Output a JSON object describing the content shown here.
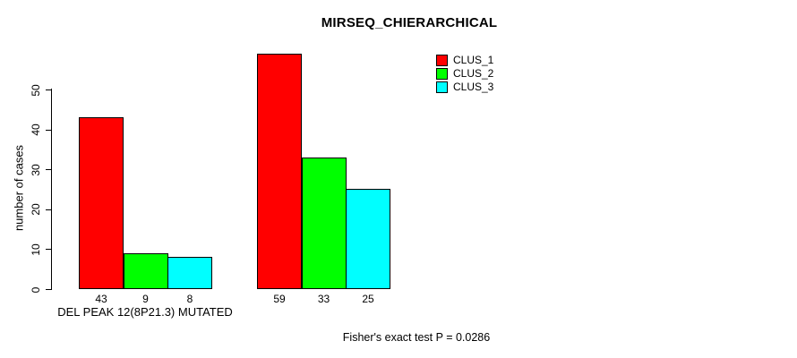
{
  "chart_data": {
    "type": "bar",
    "title": "MIRSEQ_CHIERARCHICAL",
    "ylabel": "number of cases",
    "xlabel": "",
    "ylim": [
      0,
      50
    ],
    "yticks": [
      0,
      10,
      20,
      30,
      40,
      50
    ],
    "grid": false,
    "legend_position": "top-right",
    "categories": [
      "DEL PEAK 12(8P21.3) MUTATED",
      ""
    ],
    "series": [
      {
        "name": "CLUS_1",
        "color": "#ff0000",
        "values": [
          43,
          59
        ]
      },
      {
        "name": "CLUS_2",
        "color": "#00ff00",
        "values": [
          9,
          33
        ]
      },
      {
        "name": "CLUS_3",
        "color": "#00ffff",
        "values": [
          8,
          25
        ]
      }
    ],
    "bar_value_labels": [
      [
        "43",
        "9",
        "8"
      ],
      [
        "59",
        "33",
        "25"
      ]
    ],
    "group_label": "DEL PEAK 12(8P21.3) MUTATED",
    "annotation": "Fisher's exact test P = 0.0286"
  }
}
